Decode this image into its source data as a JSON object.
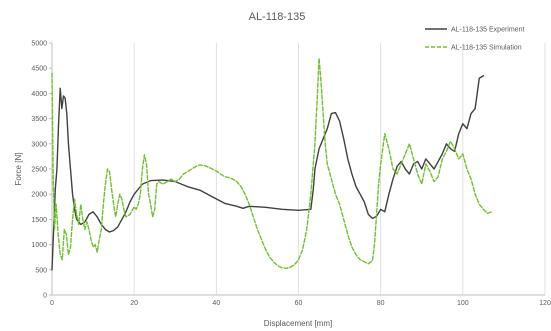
{
  "chart_data": {
    "type": "line",
    "title": "AL-118-135",
    "xlabel": "Displacement [mm]",
    "ylabel": "Force [N]",
    "xlim": [
      0,
      120
    ],
    "ylim": [
      0,
      5000
    ],
    "x_ticks": [
      0,
      20,
      40,
      60,
      80,
      100,
      120
    ],
    "y_ticks": [
      0,
      500,
      1000,
      1500,
      2000,
      2500,
      3000,
      3500,
      4000,
      4500,
      5000
    ],
    "grid": "vertical",
    "legend_position": "top-right",
    "series": [
      {
        "name": "AL-118-135 Experiment",
        "color": "#404040",
        "dash": "solid",
        "points": [
          [
            0,
            500
          ],
          [
            0.4,
            1300
          ],
          [
            0.8,
            2100
          ],
          [
            1.2,
            2500
          ],
          [
            1.6,
            3400
          ],
          [
            2.0,
            4100
          ],
          [
            2.4,
            3700
          ],
          [
            2.8,
            3950
          ],
          [
            3.2,
            3900
          ],
          [
            3.6,
            3600
          ],
          [
            4.0,
            3000
          ],
          [
            4.5,
            2500
          ],
          [
            5.0,
            2000
          ],
          [
            5.5,
            1700
          ],
          [
            6.0,
            1500
          ],
          [
            7.0,
            1400
          ],
          [
            8.0,
            1450
          ],
          [
            9.0,
            1600
          ],
          [
            10.0,
            1650
          ],
          [
            11.0,
            1550
          ],
          [
            12.0,
            1400
          ],
          [
            13.0,
            1300
          ],
          [
            14.0,
            1250
          ],
          [
            15.0,
            1280
          ],
          [
            16.0,
            1350
          ],
          [
            17.0,
            1500
          ],
          [
            18.0,
            1650
          ],
          [
            19.0,
            1850
          ],
          [
            20.0,
            2000
          ],
          [
            21.0,
            2100
          ],
          [
            22.0,
            2200
          ],
          [
            24.0,
            2270
          ],
          [
            27.0,
            2280
          ],
          [
            30.0,
            2250
          ],
          [
            33.0,
            2150
          ],
          [
            36.0,
            2080
          ],
          [
            39.0,
            1950
          ],
          [
            42.0,
            1820
          ],
          [
            45.0,
            1760
          ],
          [
            46.5,
            1720
          ],
          [
            48.0,
            1760
          ],
          [
            52.0,
            1740
          ],
          [
            56.0,
            1700
          ],
          [
            60.0,
            1680
          ],
          [
            63.0,
            1700
          ],
          [
            63.6,
            2100
          ],
          [
            64.0,
            2500
          ],
          [
            65.0,
            2900
          ],
          [
            66.0,
            3100
          ],
          [
            67.0,
            3300
          ],
          [
            68.0,
            3600
          ],
          [
            69.0,
            3620
          ],
          [
            70.0,
            3450
          ],
          [
            71.0,
            3100
          ],
          [
            72.0,
            2700
          ],
          [
            73.0,
            2400
          ],
          [
            74.0,
            2150
          ],
          [
            75.0,
            2000
          ],
          [
            76.0,
            1850
          ],
          [
            77.0,
            1600
          ],
          [
            78.0,
            1520
          ],
          [
            79.0,
            1560
          ],
          [
            80.0,
            1700
          ],
          [
            81.0,
            1650
          ],
          [
            82.0,
            2000
          ],
          [
            83.0,
            2300
          ],
          [
            84.0,
            2550
          ],
          [
            85.0,
            2650
          ],
          [
            86.0,
            2500
          ],
          [
            87.0,
            2400
          ],
          [
            88.0,
            2600
          ],
          [
            89.0,
            2650
          ],
          [
            90.0,
            2500
          ],
          [
            91.0,
            2700
          ],
          [
            92.0,
            2600
          ],
          [
            93.0,
            2500
          ],
          [
            94.0,
            2650
          ],
          [
            95.0,
            2800
          ],
          [
            96.0,
            3000
          ],
          [
            97.0,
            2900
          ],
          [
            98.0,
            2850
          ],
          [
            99.0,
            3200
          ],
          [
            100.0,
            3400
          ],
          [
            101.0,
            3300
          ],
          [
            102.0,
            3600
          ],
          [
            103.0,
            3700
          ],
          [
            103.5,
            4000
          ],
          [
            104.0,
            4300
          ],
          [
            105.0,
            4350
          ]
        ]
      },
      {
        "name": "AL-118-135 Simulation",
        "color": "#70c030",
        "dash": "4,2",
        "points": [
          [
            0,
            4400
          ],
          [
            0.3,
            2300
          ],
          [
            0.6,
            1300
          ],
          [
            1.0,
            1800
          ],
          [
            1.5,
            1200
          ],
          [
            2.0,
            800
          ],
          [
            2.5,
            700
          ],
          [
            3.0,
            1300
          ],
          [
            3.5,
            1200
          ],
          [
            4.0,
            800
          ],
          [
            4.5,
            950
          ],
          [
            5.0,
            1500
          ],
          [
            5.5,
            1900
          ],
          [
            6.0,
            1600
          ],
          [
            6.5,
            1400
          ],
          [
            7.0,
            1800
          ],
          [
            7.5,
            1500
          ],
          [
            8.0,
            1300
          ],
          [
            8.5,
            1450
          ],
          [
            9.0,
            1300
          ],
          [
            9.5,
            1100
          ],
          [
            10.0,
            950
          ],
          [
            10.5,
            1000
          ],
          [
            11.0,
            850
          ],
          [
            11.5,
            1100
          ],
          [
            12.0,
            1300
          ],
          [
            12.5,
            1800
          ],
          [
            13.0,
            2200
          ],
          [
            13.5,
            2500
          ],
          [
            14.0,
            2450
          ],
          [
            14.5,
            2100
          ],
          [
            15.0,
            1800
          ],
          [
            15.5,
            1550
          ],
          [
            16.0,
            1800
          ],
          [
            16.5,
            2000
          ],
          [
            17.0,
            1900
          ],
          [
            17.5,
            1700
          ],
          [
            18.0,
            1550
          ],
          [
            19.0,
            1600
          ],
          [
            20.0,
            1750
          ],
          [
            20.5,
            1700
          ],
          [
            21.0,
            1800
          ],
          [
            21.5,
            2000
          ],
          [
            22.0,
            2500
          ],
          [
            22.5,
            2780
          ],
          [
            23.0,
            2600
          ],
          [
            23.5,
            2000
          ],
          [
            24.0,
            1800
          ],
          [
            24.5,
            1550
          ],
          [
            25.0,
            1700
          ],
          [
            25.5,
            2200
          ],
          [
            26.0,
            2250
          ],
          [
            27.0,
            2200
          ],
          [
            28.0,
            2250
          ],
          [
            29.0,
            2300
          ],
          [
            30.0,
            2250
          ],
          [
            31.0,
            2300
          ],
          [
            32.0,
            2400
          ],
          [
            33.0,
            2450
          ],
          [
            34.0,
            2500
          ],
          [
            35.0,
            2550
          ],
          [
            36.0,
            2580
          ],
          [
            37.0,
            2570
          ],
          [
            38.0,
            2540
          ],
          [
            39.0,
            2500
          ],
          [
            40.0,
            2460
          ],
          [
            41.0,
            2400
          ],
          [
            42.0,
            2350
          ],
          [
            43.0,
            2330
          ],
          [
            44.0,
            2300
          ],
          [
            45.0,
            2250
          ],
          [
            46.0,
            2150
          ],
          [
            47.0,
            2000
          ],
          [
            48.0,
            1800
          ],
          [
            49.0,
            1550
          ],
          [
            50.0,
            1300
          ],
          [
            51.0,
            1100
          ],
          [
            52.0,
            900
          ],
          [
            53.0,
            750
          ],
          [
            54.0,
            650
          ],
          [
            55.0,
            580
          ],
          [
            56.0,
            540
          ],
          [
            57.0,
            530
          ],
          [
            58.0,
            550
          ],
          [
            59.0,
            600
          ],
          [
            60.0,
            700
          ],
          [
            61.0,
            900
          ],
          [
            62.0,
            1300
          ],
          [
            63.0,
            2000
          ],
          [
            64.0,
            3000
          ],
          [
            64.5,
            3800
          ],
          [
            65.0,
            4700
          ],
          [
            65.5,
            4200
          ],
          [
            66.0,
            3600
          ],
          [
            66.5,
            3000
          ],
          [
            67.0,
            2600
          ],
          [
            68.0,
            2300
          ],
          [
            69.0,
            2000
          ],
          [
            70.0,
            1800
          ],
          [
            71.0,
            1500
          ],
          [
            72.0,
            1200
          ],
          [
            73.0,
            950
          ],
          [
            74.0,
            800
          ],
          [
            75.0,
            700
          ],
          [
            76.0,
            660
          ],
          [
            77.0,
            620
          ],
          [
            78.0,
            680
          ],
          [
            78.5,
            1000
          ],
          [
            79.0,
            1600
          ],
          [
            79.5,
            2200
          ],
          [
            80.0,
            2600
          ],
          [
            81.0,
            3200
          ],
          [
            82.0,
            2900
          ],
          [
            83.0,
            2500
          ],
          [
            84.0,
            2400
          ],
          [
            85.0,
            2600
          ],
          [
            86.0,
            2800
          ],
          [
            87.0,
            3000
          ],
          [
            88.0,
            2700
          ],
          [
            89.0,
            2400
          ],
          [
            90.0,
            2200
          ],
          [
            91.0,
            2600
          ],
          [
            92.0,
            2450
          ],
          [
            93.0,
            2250
          ],
          [
            94.0,
            2350
          ],
          [
            95.0,
            2700
          ],
          [
            96.0,
            2850
          ],
          [
            97.0,
            3050
          ],
          [
            98.0,
            2900
          ],
          [
            99.0,
            2700
          ],
          [
            100.0,
            2800
          ],
          [
            101.0,
            2500
          ],
          [
            102.0,
            2300
          ],
          [
            103.0,
            2000
          ],
          [
            104.0,
            1800
          ],
          [
            105.0,
            1700
          ],
          [
            106.0,
            1620
          ],
          [
            107.0,
            1650
          ]
        ]
      }
    ]
  }
}
